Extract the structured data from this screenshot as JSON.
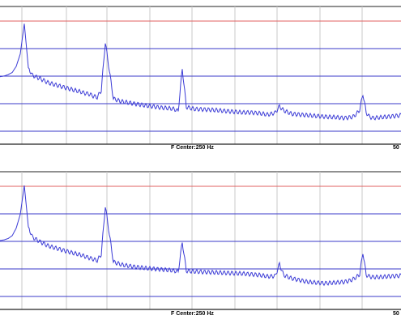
{
  "chart_data": [
    {
      "type": "line",
      "xlabel": "F Center:250 Hz",
      "x_end_label": "50",
      "colors": {
        "trace": "#3b3bd6",
        "band_line": "#3a3ac8",
        "red_line": "#e06060",
        "grid": "#c8c8c8",
        "axis": "#222222"
      },
      "grid": true,
      "series": [
        {
          "x": [
            0,
            5,
            10,
            15,
            20,
            25,
            30,
            35,
            40,
            50,
            60,
            75,
            90,
            100,
            105,
            110,
            115,
            120,
            125,
            130,
            140,
            150,
            165,
            180,
            200,
            210,
            215,
            220,
            225,
            230,
            240,
            260,
            280,
            300,
            310,
            320,
            325,
            330,
            335,
            340,
            345,
            350,
            360,
            380,
            400,
            415,
            425,
            432,
            436,
            440,
            444,
            448,
            452,
            456,
            460,
            470,
            480,
            495
          ],
          "y": [
            98,
            99,
            101,
            104,
            113,
            131,
            175,
            111,
            100,
            95,
            89,
            84,
            79,
            76,
            74,
            73,
            70,
            68,
            78,
            148,
            66,
            62,
            59,
            56,
            53,
            52,
            51,
            48,
            110,
            54,
            51,
            50,
            48,
            46,
            46,
            45,
            44,
            43,
            44,
            46,
            55,
            49,
            44,
            42,
            40,
            39,
            38,
            39,
            40,
            44,
            50,
            73,
            46,
            40,
            38,
            39,
            40,
            42
          ]
        }
      ]
    },
    {
      "type": "line",
      "xlabel": "F Center:250 Hz",
      "x_end_label": "50",
      "colors": {
        "trace": "#3b3bd6",
        "band_line": "#3a3ac8",
        "red_line": "#e06060",
        "grid": "#c8c8c8",
        "axis": "#222222"
      },
      "grid": true,
      "series": [
        {
          "x": [
            0,
            5,
            10,
            15,
            20,
            25,
            30,
            35,
            40,
            50,
            60,
            75,
            90,
            100,
            105,
            110,
            115,
            120,
            125,
            130,
            140,
            150,
            165,
            180,
            200,
            210,
            215,
            220,
            225,
            230,
            240,
            260,
            280,
            300,
            310,
            320,
            325,
            330,
            335,
            340,
            345,
            350,
            360,
            380,
            400,
            415,
            425,
            432,
            436,
            440,
            444,
            448,
            452,
            456,
            460,
            470,
            480,
            495
          ],
          "y": [
            100,
            101,
            103,
            107,
            118,
            138,
            180,
            120,
            105,
            98,
            92,
            87,
            82,
            79,
            77,
            75,
            73,
            71,
            80,
            150,
            69,
            65,
            62,
            60,
            58,
            57,
            56,
            55,
            98,
            56,
            55,
            54,
            53,
            52,
            51,
            50,
            49,
            48,
            48,
            49,
            66,
            50,
            45,
            40,
            38,
            39,
            40,
            42,
            44,
            47,
            51,
            83,
            50,
            48,
            47,
            47,
            48,
            49
          ]
        }
      ]
    }
  ]
}
